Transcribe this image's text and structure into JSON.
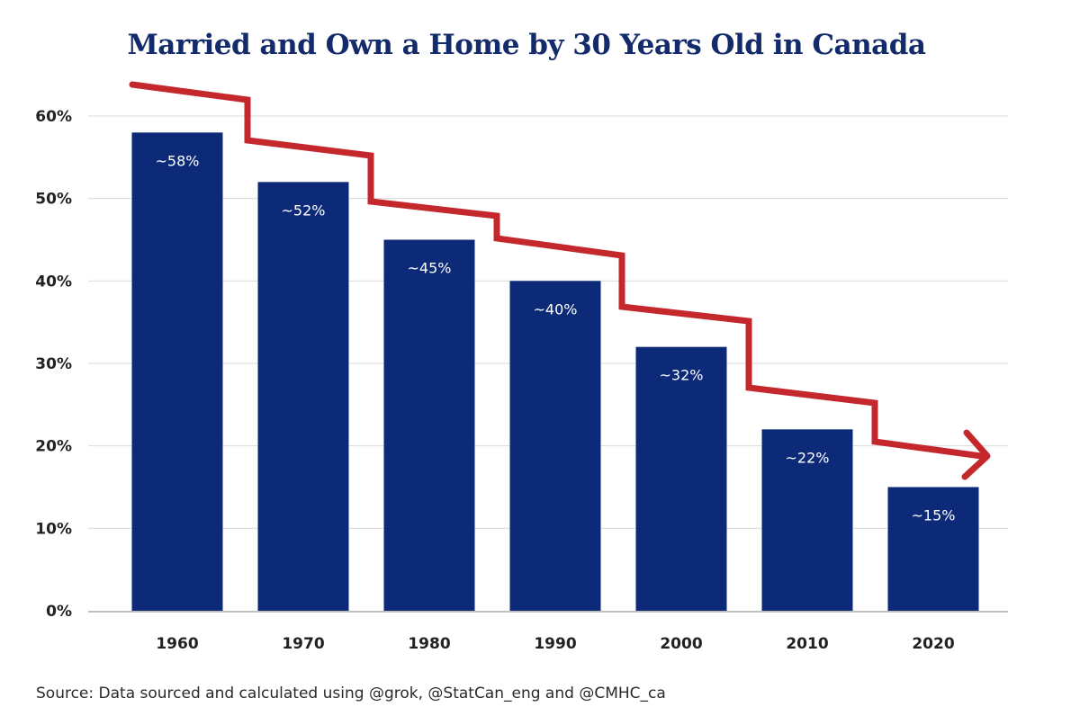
{
  "chart_data": {
    "type": "bar",
    "title": "Married and Own a Home by 30 Years Old in Canada",
    "categories": [
      "1960",
      "1970",
      "1980",
      "1990",
      "2000",
      "2010",
      "2020"
    ],
    "values": [
      58,
      52,
      45,
      40,
      32,
      22,
      15
    ],
    "data_labels": [
      "~58%",
      "~52%",
      "~45%",
      "~40%",
      "~32%",
      "~22%",
      "~15%"
    ],
    "y_ticks": [
      0,
      10,
      20,
      30,
      40,
      50,
      60
    ],
    "y_tick_labels": [
      "0%",
      "10%",
      "20%",
      "30%",
      "40%",
      "50%",
      "60%"
    ],
    "ylim": [
      0,
      60
    ],
    "xlabel": "",
    "ylabel": "",
    "grid": true,
    "legend": "none",
    "bar_color": "#0c2a78",
    "trend_arrow_color": "#c4282d",
    "annotation": "downward trend arrow"
  },
  "source_text": "Source: Data sourced and calculated using @grok, @StatCan_eng and @CMHC_ca"
}
